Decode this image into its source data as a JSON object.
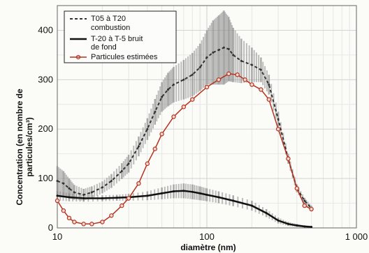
{
  "chart_data": {
    "type": "line",
    "x_scale": "log",
    "xlim": [
      10,
      1000
    ],
    "ylim": [
      0,
      450
    ],
    "grid": true,
    "legend_position": "top-left",
    "xlabel": "diamètre (nm)",
    "ylabel_line1": "Concentration (en nombre de",
    "ylabel_line2": "particules/cm³)",
    "x_ticks": [
      {
        "value": 10,
        "label": "10"
      },
      {
        "value": 100,
        "label": "100"
      },
      {
        "value": 1000,
        "label": "1 000"
      }
    ],
    "y_ticks": [
      {
        "value": 0,
        "label": "0"
      },
      {
        "value": 100,
        "label": "100"
      },
      {
        "value": 200,
        "label": "200"
      },
      {
        "value": 300,
        "label": "300"
      },
      {
        "value": 400,
        "label": "400"
      }
    ],
    "legend": [
      {
        "line1": "T05 à T20",
        "line2": "combustion"
      },
      {
        "line1": "T-20 à T-5 bruit",
        "line2": "de fond"
      },
      {
        "line1": "Particules estimées",
        "line2": ""
      }
    ],
    "series": [
      {
        "name": "T05 à T20 combustion",
        "color": "#333333",
        "style": "dashed-with-error-bars",
        "x": [
          10,
          11,
          12,
          13,
          15,
          17,
          20,
          23,
          27,
          30,
          35,
          40,
          45,
          50,
          55,
          60,
          70,
          80,
          90,
          100,
          110,
          120,
          130,
          140,
          150,
          170,
          200,
          230,
          260,
          300,
          350,
          400,
          450,
          500
        ],
        "y": [
          95,
          90,
          80,
          72,
          67,
          72,
          82,
          95,
          115,
          130,
          165,
          200,
          235,
          265,
          280,
          290,
          300,
          310,
          325,
          345,
          355,
          360,
          365,
          362,
          350,
          338,
          330,
          320,
          290,
          220,
          140,
          80,
          55,
          40
        ],
        "err": [
          30,
          25,
          20,
          15,
          12,
          12,
          12,
          14,
          16,
          18,
          20,
          22,
          26,
          30,
          34,
          36,
          40,
          44,
          48,
          55,
          65,
          70,
          75,
          65,
          55,
          45,
          35,
          25,
          20,
          15,
          10,
          8,
          6,
          5
        ]
      },
      {
        "name": "T-20 à T-5 bruit de fond",
        "color": "#111111",
        "style": "solid-with-error-bars",
        "x": [
          10,
          12,
          15,
          20,
          25,
          30,
          40,
          50,
          60,
          70,
          80,
          90,
          100,
          120,
          150,
          200,
          250,
          300,
          350,
          400,
          450,
          500
        ],
        "y": [
          65,
          62,
          60,
          60,
          61,
          62,
          65,
          70,
          74,
          75,
          73,
          70,
          67,
          62,
          55,
          45,
          30,
          15,
          8,
          5,
          3,
          2
        ],
        "err": [
          10,
          8,
          7,
          6,
          6,
          7,
          9,
          12,
          14,
          15,
          15,
          14,
          13,
          12,
          11,
          10,
          8,
          6,
          4,
          3,
          2,
          2
        ]
      },
      {
        "name": "Particules estimées",
        "color": "#b5321f",
        "style": "line-with-circle-markers",
        "x": [
          10,
          11,
          12,
          13,
          15,
          17,
          20,
          23,
          27,
          30,
          35,
          40,
          45,
          50,
          60,
          70,
          80,
          100,
          120,
          140,
          160,
          180,
          200,
          230,
          260,
          300,
          350,
          400,
          450,
          500
        ],
        "y": [
          55,
          35,
          20,
          12,
          8,
          8,
          12,
          25,
          45,
          60,
          90,
          130,
          160,
          190,
          225,
          245,
          260,
          285,
          300,
          312,
          310,
          300,
          290,
          280,
          260,
          200,
          140,
          80,
          45,
          38
        ]
      }
    ]
  }
}
